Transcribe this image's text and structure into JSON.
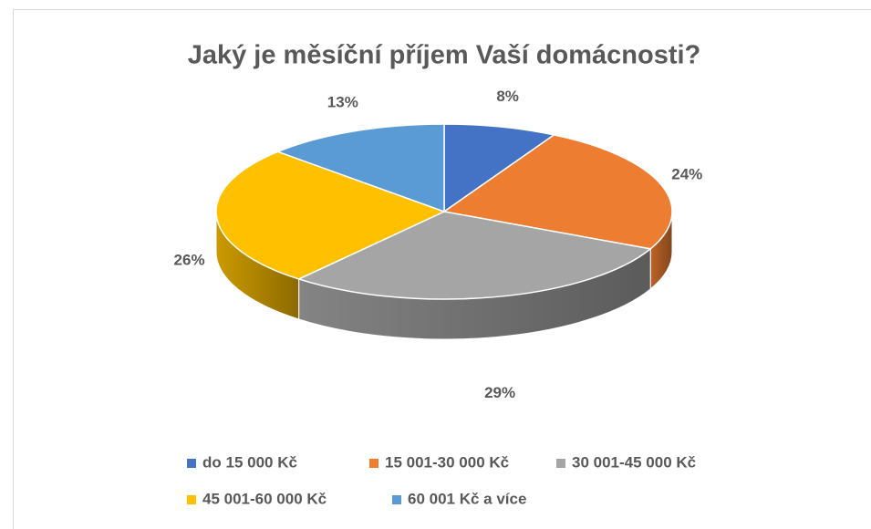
{
  "chart_data": {
    "type": "pie",
    "title": "Jaký je měsíční příjem Vaší domácnosti?",
    "categories": [
      "do 15 000 Kč",
      "15 001-30 000 Kč",
      "30 001-45 000 Kč",
      "45 001-60 000 Kč",
      "60 001 Kč a více"
    ],
    "values": [
      8,
      24,
      29,
      26,
      13
    ],
    "value_labels": [
      "8%",
      "24%",
      "29%",
      "26%",
      "13%"
    ],
    "colors": [
      "#4472c4",
      "#ed7d31",
      "#a5a5a5",
      "#ffc000",
      "#5b9bd5"
    ],
    "legend": "bottom"
  }
}
